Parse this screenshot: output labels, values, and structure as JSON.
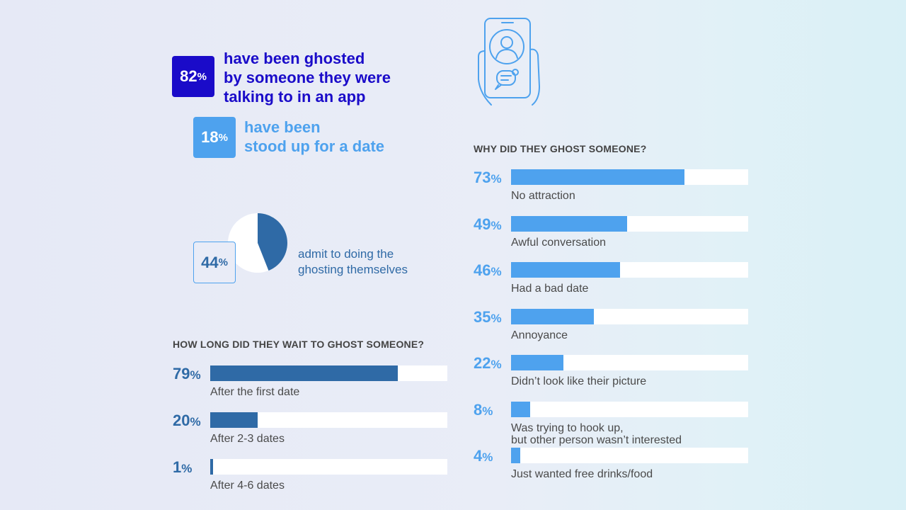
{
  "colors": {
    "dark_blue": "#1a0bc9",
    "light_blue": "#4ea2ee",
    "steel_blue": "#2f6aa6",
    "bar_light": "#4ea2ee",
    "bar_dark": "#2f6aa6"
  },
  "stats": {
    "ghosted": {
      "num": "82",
      "pct": "%",
      "text": "have been ghosted\nby someone they were\ntalking to in an app"
    },
    "stood_up": {
      "num": "18",
      "pct": "%",
      "text": "have been\nstood up for a date"
    },
    "admit": {
      "num": "44",
      "pct": "%",
      "text": "admit to doing the\nghosting themselves",
      "value": 44
    }
  },
  "icons": {
    "phone": "phone-profile-chat-icon"
  },
  "chart_data": [
    {
      "type": "bar",
      "orientation": "horizontal",
      "title": "HOW LONG DID THEY WAIT TO GHOST SOMEONE?",
      "categories": [
        "After the first date",
        "After 2-3 dates",
        "After 4-6 dates"
      ],
      "values": [
        79,
        20,
        1
      ],
      "value_labels": [
        "79",
        "20",
        "1"
      ],
      "unit": "%",
      "xlim": [
        0,
        100
      ]
    },
    {
      "type": "bar",
      "orientation": "horizontal",
      "title": "WHY DID THEY GHOST SOMEONE?",
      "categories": [
        "No attraction",
        "Awful conversation",
        "Had a bad date",
        "Annoyance",
        "Didn’t look like their picture",
        "Was trying to hook up,\nbut other person wasn’t interested",
        "Just wanted free drinks/food"
      ],
      "values": [
        73,
        49,
        46,
        35,
        22,
        8,
        4
      ],
      "value_labels": [
        "73",
        "49",
        "46",
        "35",
        "22",
        "8",
        "4"
      ],
      "unit": "%",
      "xlim": [
        0,
        100
      ]
    },
    {
      "type": "pie",
      "categories": [
        "admit to doing the ghosting themselves",
        "other"
      ],
      "values": [
        44,
        56
      ]
    }
  ]
}
